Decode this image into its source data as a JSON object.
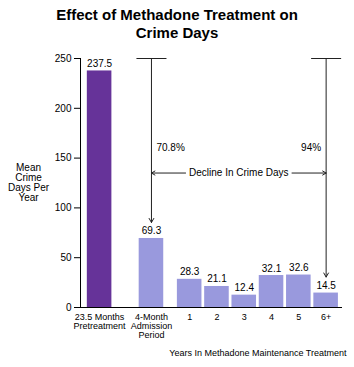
{
  "chart_data": {
    "type": "bar",
    "title": "Effect of Methadone Treatment on Crime Days",
    "categories": [
      "23.5 Months Pretreatment",
      "4-Month Admission Period",
      "1",
      "2",
      "3",
      "4",
      "5",
      "6+"
    ],
    "values": [
      237.5,
      69.3,
      28.3,
      21.1,
      12.4,
      32.1,
      32.6,
      14.5
    ],
    "colors": [
      "#663399",
      "#9999dd",
      "#9999dd",
      "#9999dd",
      "#9999dd",
      "#9999dd",
      "#9999dd",
      "#9999dd"
    ],
    "xlabel": "Years In Methadone Maintenance Treatment",
    "ylabel": "Mean Crime Days Per Year",
    "ylim": [
      0,
      250
    ],
    "yticks": [
      0,
      50,
      100,
      150,
      200,
      250
    ],
    "grid": false,
    "data_labels": true,
    "annotations": {
      "first_decline": "70.8%",
      "total_decline": "94%",
      "label": "Decline In Crime Days"
    }
  }
}
